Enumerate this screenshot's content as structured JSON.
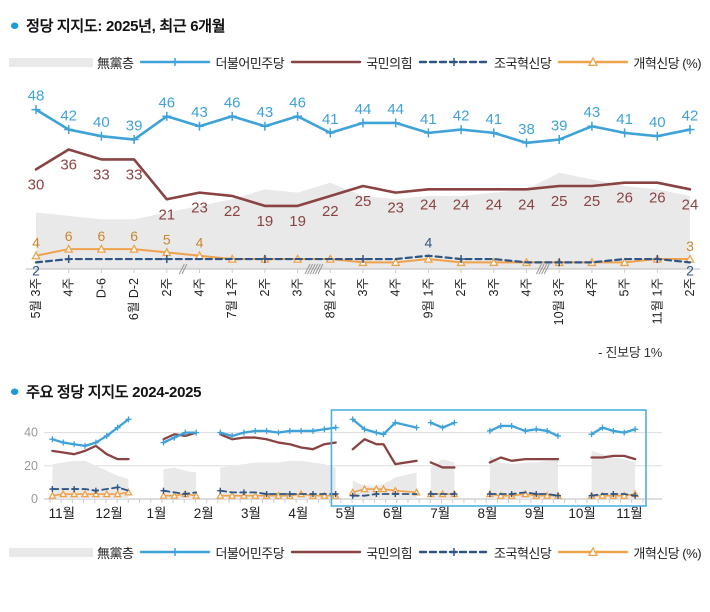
{
  "sections": {
    "top": {
      "bullet": "●",
      "title": "정당 지지도: 2025년, 최근 6개월"
    },
    "bottom": {
      "bullet": "●",
      "title": "주요 정당 지지도 2024-2025"
    }
  },
  "note": "- 진보당 1%",
  "colors": {
    "minjoo": "#3fa2d9",
    "ppp": "#8a4343",
    "joguk": "#2f5584",
    "reform": "#efa24c",
    "mudang": "#e9e9e9",
    "axis": "#bbbbbb",
    "grid": "#dddddd",
    "tick": "#cccccc",
    "hatch": "#999999",
    "highlight_box": "#4fb0dc",
    "title_bullet": "#1d9bd8",
    "xlabel_text": "#222222",
    "ylabel_text": "#999999"
  },
  "legend": {
    "items": [
      {
        "key": "mudang",
        "label": "無黨층",
        "swatch": "area",
        "marker": null
      },
      {
        "key": "minjoo",
        "label": "더불어민주당",
        "swatch": "line",
        "marker": "plus"
      },
      {
        "key": "ppp",
        "label": "국민의힘",
        "swatch": "line",
        "marker": null
      },
      {
        "key": "joguk",
        "label": "조국혁신당",
        "swatch": "dashed",
        "marker": "plus"
      },
      {
        "key": "reform",
        "label": "개혁신당 (%)",
        "swatch": "line",
        "marker": "triangle"
      }
    ]
  },
  "chart_data": [
    {
      "type": "line",
      "title": "정당 지지도: 2025년, 최근 6개월",
      "unit": "%",
      "categories": [
        "5월 3주",
        "4주",
        "D-6",
        "6월 D-2",
        "2주",
        "4주",
        "7월 1주",
        "2주",
        "3주",
        "8월 2주",
        "3주",
        "4주",
        "9월 1주",
        "2주",
        "3주",
        "4주",
        "10월 3주",
        "4주",
        "5주",
        "11월 1주",
        "2주"
      ],
      "ylim": [
        0,
        55
      ],
      "grid": false,
      "axis_breaks": [
        {
          "after_index": 4,
          "slashes": 2
        },
        {
          "after_index": 8,
          "slashes": 6
        },
        {
          "after_index": 15,
          "slashes": 4
        }
      ],
      "series": [
        {
          "key": "mudang",
          "name": "無黨층",
          "type": "area",
          "values": [
            17,
            16,
            15,
            15,
            17,
            19,
            21,
            24,
            23,
            26,
            22,
            21,
            22,
            22,
            23,
            24,
            29,
            27,
            25,
            24,
            22
          ],
          "show_labels": []
        },
        {
          "key": "minjoo",
          "name": "더불어민주당",
          "type": "line",
          "values": [
            48,
            42,
            40,
            39,
            46,
            43,
            46,
            43,
            46,
            41,
            44,
            44,
            41,
            42,
            41,
            38,
            39,
            43,
            41,
            40,
            42
          ],
          "show_labels": "all"
        },
        {
          "key": "ppp",
          "name": "국민의힘",
          "type": "line",
          "values": [
            30,
            36,
            33,
            33,
            21,
            23,
            22,
            19,
            19,
            22,
            25,
            23,
            24,
            24,
            24,
            24,
            25,
            25,
            26,
            26,
            24
          ],
          "show_labels": "all"
        },
        {
          "key": "joguk",
          "name": "조국혁신당",
          "type": "dashed",
          "values": [
            2,
            3,
            3,
            3,
            3,
            3,
            3,
            3,
            3,
            3,
            3,
            3,
            4,
            3,
            3,
            2,
            2,
            2,
            3,
            3,
            2
          ],
          "show_labels": [
            0,
            12,
            20
          ]
        },
        {
          "key": "reform",
          "name": "개혁신당",
          "type": "line",
          "values": [
            4,
            6,
            6,
            6,
            5,
            4,
            3,
            3,
            3,
            3,
            2,
            2,
            3,
            2,
            2,
            2,
            2,
            2,
            2,
            3,
            3
          ],
          "show_labels": [
            0,
            1,
            2,
            3,
            4,
            5,
            20
          ]
        }
      ],
      "footnote": "- 진보당 1%"
    },
    {
      "type": "line",
      "title": "주요 정당 지지도 2024-2025",
      "unit": "%",
      "x_axis": {
        "month_labels": [
          "11월",
          "12월",
          "1월",
          "2월",
          "3월",
          "4월",
          "5월",
          "6월",
          "7월",
          "8월",
          "9월",
          "10월",
          "11월"
        ]
      },
      "y_axis": {
        "ticks": [
          0,
          20,
          40
        ]
      },
      "ylim": [
        0,
        52
      ],
      "grid": true,
      "highlight_box": {
        "from_month_index": 5.95,
        "to_month_index": 12.6
      },
      "segments": [
        {
          "x": [
            0.05,
            0.28,
            0.51,
            0.74,
            0.97,
            1.2,
            1.43,
            1.66
          ],
          "minjoo": [
            36,
            34,
            33,
            32,
            34,
            38,
            43,
            48
          ],
          "ppp": [
            29,
            28,
            27,
            29,
            32,
            27,
            24,
            24
          ],
          "joguk": [
            6,
            6,
            6,
            6,
            5,
            6,
            7,
            5
          ],
          "reform": [
            2,
            3,
            3,
            3,
            3,
            3,
            3,
            4
          ],
          "mudang": [
            21,
            22,
            23,
            23,
            20,
            17,
            14,
            12
          ]
        },
        {
          "x": [
            2.4,
            2.63,
            2.86,
            3.09
          ],
          "minjoo": [
            34,
            37,
            40,
            40
          ],
          "ppp": [
            36,
            39,
            38,
            40
          ],
          "joguk": [
            5,
            4,
            3,
            4
          ],
          "reform": [
            2,
            2,
            3,
            2
          ],
          "mudang": [
            18,
            19,
            17,
            16
          ]
        },
        {
          "x": [
            3.6,
            3.85,
            4.1,
            4.34,
            4.58,
            4.83,
            5.07,
            5.31,
            5.56,
            5.8,
            6.04
          ],
          "minjoo": [
            40,
            38,
            40,
            41,
            41,
            40,
            41,
            41,
            41,
            42,
            43
          ],
          "ppp": [
            39,
            36,
            37,
            37,
            36,
            34,
            33,
            31,
            30,
            33,
            34
          ],
          "joguk": [
            5,
            4,
            4,
            4,
            3,
            3,
            3,
            3,
            3,
            3,
            3
          ],
          "reform": [
            2,
            2,
            2,
            2,
            2,
            2,
            2,
            3,
            2,
            2,
            2
          ],
          "mudang": [
            19,
            20,
            21,
            22,
            22,
            22,
            23,
            23,
            22,
            21,
            19
          ]
        },
        {
          "x": [
            6.4,
            6.65,
            6.9,
            7.05,
            7.3,
            7.75
          ],
          "minjoo": [
            48,
            42,
            40,
            39,
            46,
            43
          ],
          "ppp": [
            30,
            36,
            33,
            33,
            21,
            23
          ],
          "joguk": [
            2,
            2,
            3,
            3,
            3,
            3
          ],
          "reform": [
            4,
            6,
            6,
            6,
            5,
            4
          ],
          "mudang": [
            11,
            8,
            8,
            9,
            13,
            16
          ]
        },
        {
          "x": [
            8.05,
            8.3,
            8.55
          ],
          "minjoo": [
            46,
            43,
            46
          ],
          "ppp": [
            22,
            19,
            19
          ],
          "joguk": [
            3,
            3,
            3
          ],
          "reform": [
            3,
            3,
            3
          ],
          "mudang": [
            19,
            24,
            22
          ]
        },
        {
          "x": [
            9.3,
            9.53,
            9.76,
            10.05,
            10.28,
            10.51,
            10.74
          ],
          "minjoo": [
            41,
            44,
            44,
            41,
            42,
            41,
            38
          ],
          "ppp": [
            22,
            25,
            23,
            24,
            24,
            24,
            24
          ],
          "joguk": [
            3,
            3,
            3,
            4,
            3,
            3,
            2
          ],
          "reform": [
            3,
            2,
            2,
            3,
            2,
            2,
            2
          ],
          "mudang": [
            26,
            22,
            21,
            22,
            22,
            23,
            24
          ]
        },
        {
          "x": [
            11.45,
            11.68,
            11.91,
            12.14,
            12.37
          ],
          "minjoo": [
            39,
            43,
            41,
            40,
            42
          ],
          "ppp": [
            25,
            25,
            26,
            26,
            24
          ],
          "joguk": [
            2,
            3,
            3,
            3,
            2
          ],
          "reform": [
            2,
            2,
            2,
            2,
            3
          ],
          "mudang": [
            29,
            27,
            25,
            24,
            22
          ]
        }
      ]
    }
  ]
}
